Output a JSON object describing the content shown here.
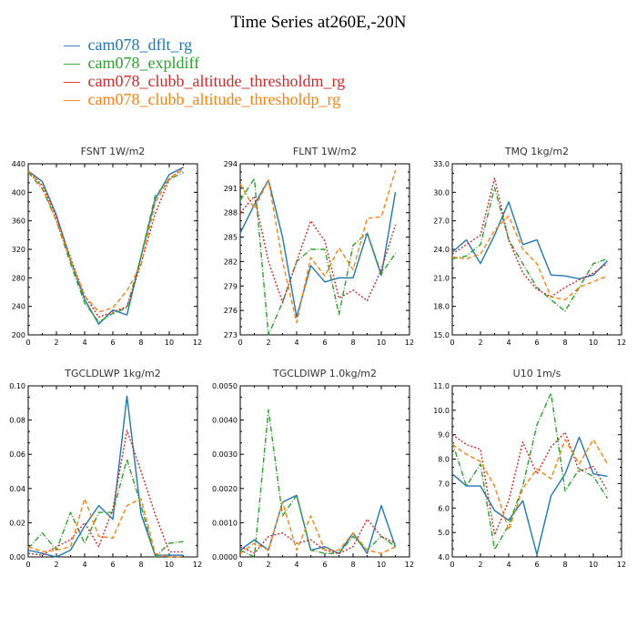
{
  "title": "Time Series at260E,-20N",
  "legend": [
    {
      "label": "cam078_dflt_rg",
      "color": "#1f77b4"
    },
    {
      "label": "cam078_expldiff",
      "color": "#2ca02c"
    },
    {
      "label": "cam078_clubb_altitude_thresholdm_rg",
      "color": "#d62728"
    },
    {
      "label": "cam078_clubb_altitude_thresholdp_rg",
      "color": "#ff7f0e"
    }
  ],
  "chart_data": [
    {
      "type": "line",
      "title": "FSNT   1W/m2",
      "xlim": [
        0,
        12
      ],
      "ylim": [
        200,
        440
      ],
      "xticks": [
        "0",
        "2",
        "4",
        "6",
        "8",
        "10",
        "12"
      ],
      "yticks": [
        "200",
        "240",
        "280",
        "320",
        "360",
        "400",
        "440"
      ],
      "x": [
        0,
        1,
        2,
        3,
        4,
        5,
        6,
        7,
        8,
        9,
        10,
        11
      ],
      "series": [
        {
          "name": "cam078_dflt_rg",
          "values": [
            430,
            415,
            368,
            305,
            250,
            215,
            235,
            228,
            310,
            390,
            425,
            435
          ]
        },
        {
          "name": "cam078_expldiff",
          "values": [
            428,
            405,
            360,
            300,
            245,
            218,
            230,
            238,
            310,
            395,
            418,
            428
          ]
        },
        {
          "name": "cam078_clubb_altitude_thresholdm_rg",
          "values": [
            430,
            410,
            365,
            308,
            255,
            225,
            232,
            240,
            300,
            370,
            418,
            435
          ]
        },
        {
          "name": "cam078_clubb_altitude_thresholdp_rg",
          "values": [
            430,
            408,
            360,
            305,
            255,
            232,
            238,
            262,
            298,
            385,
            420,
            432
          ]
        }
      ]
    },
    {
      "type": "line",
      "title": "FLNT   1W/m2",
      "xlim": [
        0,
        12
      ],
      "ylim": [
        273,
        294
      ],
      "xticks": [
        "0",
        "2",
        "4",
        "6",
        "8",
        "10",
        "12"
      ],
      "yticks": [
        "273",
        "276",
        "279",
        "282",
        "285",
        "288",
        "291",
        "294"
      ],
      "x": [
        0,
        1,
        2,
        3,
        4,
        5,
        6,
        7,
        8,
        9,
        10,
        11
      ],
      "series": [
        {
          "name": "cam078_dflt_rg",
          "values": [
            285.5,
            289,
            292,
            285,
            275.2,
            281.5,
            279.5,
            280,
            280,
            285.5,
            280.3,
            290.5
          ]
        },
        {
          "name": "cam078_expldiff",
          "values": [
            289.5,
            292.2,
            273,
            277,
            282,
            283.5,
            283.5,
            275.5,
            284,
            285.5,
            280.5,
            283
          ]
        },
        {
          "name": "cam078_clubb_altitude_thresholdm_rg",
          "values": [
            288,
            290,
            282,
            277,
            282,
            287,
            284.5,
            277.5,
            278.5,
            277.2,
            281,
            286.5
          ]
        },
        {
          "name": "cam078_clubb_altitude_thresholdp_rg",
          "values": [
            291.5,
            288.5,
            292,
            282,
            274.5,
            282.5,
            280.2,
            283.7,
            281,
            287.3,
            287.5,
            293.2
          ]
        }
      ]
    },
    {
      "type": "line",
      "title": "TMQ   1kg/m2",
      "xlim": [
        0,
        12
      ],
      "ylim": [
        15,
        33
      ],
      "xticks": [
        "0",
        "2",
        "4",
        "6",
        "8",
        "10",
        "12"
      ],
      "yticks": [
        "15.0",
        "18.0",
        "21.0",
        "24.0",
        "27.0",
        "30.0",
        "33.0"
      ],
      "x": [
        0,
        1,
        2,
        3,
        4,
        5,
        6,
        7,
        8,
        9,
        10,
        11
      ],
      "series": [
        {
          "name": "cam078_dflt_rg",
          "values": [
            23.7,
            25,
            22.5,
            25.5,
            29,
            24.5,
            25,
            21.3,
            21.2,
            20.9,
            21.3,
            22.8
          ]
        },
        {
          "name": "cam078_expldiff",
          "values": [
            23,
            23.3,
            24.5,
            30.5,
            25,
            22.5,
            20,
            18.7,
            17.5,
            20,
            22.5,
            23
          ]
        },
        {
          "name": "cam078_clubb_altitude_thresholdm_rg",
          "values": [
            23.5,
            24.5,
            25.5,
            31.5,
            25,
            21.5,
            19.8,
            19,
            20,
            20.8,
            21.5,
            22.5
          ]
        },
        {
          "name": "cam078_clubb_altitude_thresholdp_rg",
          "values": [
            23.2,
            23,
            23.5,
            26,
            27.5,
            24,
            22.5,
            19,
            18.7,
            20,
            20.6,
            21.2
          ]
        }
      ]
    },
    {
      "type": "line",
      "title": "TGCLDLWP   1kg/m2",
      "xlim": [
        0,
        12
      ],
      "ylim": [
        0,
        0.1
      ],
      "xticks": [
        "0",
        "2",
        "4",
        "6",
        "8",
        "10",
        "12"
      ],
      "yticks": [
        "0.00",
        "0.02",
        "0.04",
        "0.06",
        "0.08",
        "0.10"
      ],
      "x": [
        0,
        1,
        2,
        3,
        4,
        5,
        6,
        7,
        8,
        9,
        10,
        11
      ],
      "series": [
        {
          "name": "cam078_dflt_rg",
          "values": [
            0.004,
            0.002,
            0,
            0.004,
            0.018,
            0.03,
            0.022,
            0.094,
            0.025,
            0.001,
            0.001,
            0.001
          ]
        },
        {
          "name": "cam078_expldiff",
          "values": [
            0.005,
            0.014,
            0.004,
            0.026,
            0.008,
            0.026,
            0.026,
            0.057,
            0.03,
            0,
            0.008,
            0.009
          ]
        },
        {
          "name": "cam078_clubb_altitude_thresholdm_rg",
          "values": [
            0.002,
            0.001,
            0.006,
            0.01,
            0.02,
            0.006,
            0.028,
            0.074,
            0.05,
            0.025,
            0.003,
            0.003
          ]
        },
        {
          "name": "cam078_clubb_altitude_thresholdp_rg",
          "values": [
            0.006,
            0.003,
            0.004,
            0.006,
            0.034,
            0.012,
            0.011,
            0.03,
            0.034,
            0.002,
            0,
            0
          ]
        }
      ]
    },
    {
      "type": "line",
      "title": "TGCLDIWP   1.0kg/m2",
      "xlim": [
        0,
        12
      ],
      "ylim": [
        0,
        0.005
      ],
      "xticks": [
        "0",
        "2",
        "4",
        "6",
        "8",
        "10",
        "12"
      ],
      "yticks": [
        "0.0000",
        "0.0010",
        "0.0020",
        "0.0030",
        "0.0040",
        "0.0050"
      ],
      "x": [
        0,
        1,
        2,
        3,
        4,
        5,
        6,
        7,
        8,
        9,
        10,
        11
      ],
      "series": [
        {
          "name": "cam078_dflt_rg",
          "values": [
            0.0002,
            0.0005,
            0.0002,
            0.0016,
            0.0018,
            0.0002,
            0.0003,
            0.0001,
            0.0007,
            0.0001,
            0.0015,
            0.0003
          ]
        },
        {
          "name": "cam078_expldiff",
          "values": [
            0.0002,
            0,
            0.0043,
            0.0012,
            0.0018,
            0.0002,
            0.0001,
            0.0001,
            0.0006,
            0.0002,
            0.0006,
            0.0003
          ]
        },
        {
          "name": "cam078_clubb_altitude_thresholdm_rg",
          "values": [
            0.0003,
            0.0001,
            0.0006,
            0.0007,
            0.0004,
            0.0005,
            0.0002,
            0.0001,
            0.0003,
            0.0011,
            0.0006,
            0.0004
          ]
        },
        {
          "name": "cam078_clubb_altitude_thresholdp_rg",
          "values": [
            0.0001,
            0.0004,
            0.0002,
            0.0016,
            0.0002,
            0.0012,
            0.0002,
            0.0002,
            0.0007,
            0.0002,
            0.0001,
            0.0003
          ]
        }
      ]
    },
    {
      "type": "line",
      "title": "U10   1m/s",
      "xlim": [
        0,
        12
      ],
      "ylim": [
        4,
        11
      ],
      "xticks": [
        "0",
        "2",
        "4",
        "6",
        "8",
        "10",
        "12"
      ],
      "yticks": [
        "4.0",
        "5.0",
        "6.0",
        "7.0",
        "8.0",
        "9.0",
        "10.0",
        "11.0"
      ],
      "x": [
        0,
        1,
        2,
        3,
        4,
        5,
        6,
        7,
        8,
        9,
        10,
        11
      ],
      "series": [
        {
          "name": "cam078_dflt_rg",
          "values": [
            7.4,
            6.9,
            6.9,
            5.9,
            5.5,
            6.3,
            4.1,
            6.5,
            7.4,
            8.9,
            7.4,
            7.3
          ]
        },
        {
          "name": "cam078_expldiff",
          "values": [
            8.7,
            6.9,
            7.8,
            4.3,
            5.3,
            6.9,
            9.4,
            10.7,
            6.7,
            7.6,
            7.3,
            6.4
          ]
        },
        {
          "name": "cam078_clubb_altitude_thresholdm_rg",
          "values": [
            9,
            8.6,
            8.4,
            4.9,
            6.3,
            8.7,
            7.4,
            8.5,
            9.1,
            7.5,
            7.7,
            6.7
          ]
        },
        {
          "name": "cam078_clubb_altitude_thresholdp_rg",
          "values": [
            8.6,
            8.2,
            7.9,
            6.9,
            5.1,
            6.8,
            7.6,
            7.2,
            8.8,
            7.8,
            8.8,
            7.8
          ]
        }
      ]
    }
  ]
}
